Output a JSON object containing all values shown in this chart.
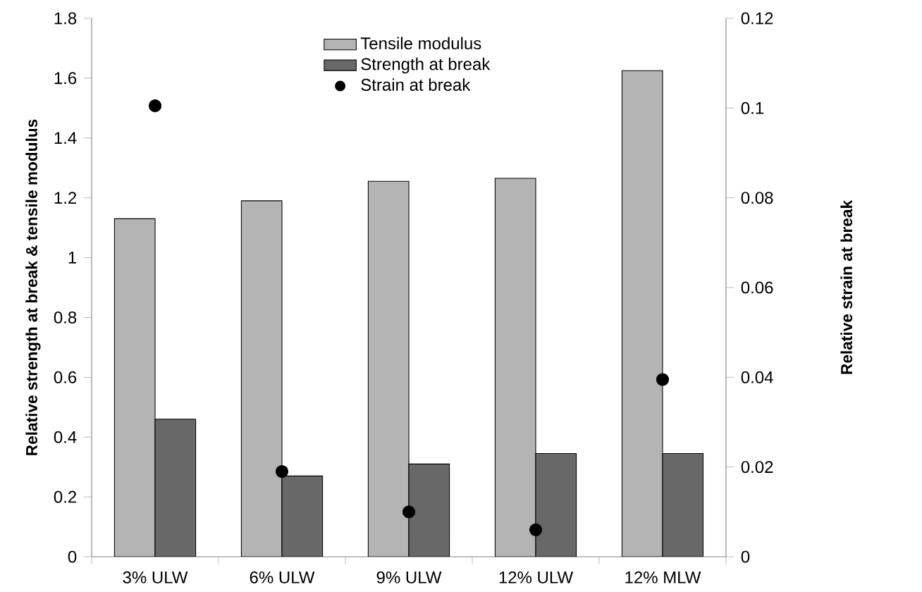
{
  "chart_data": {
    "type": "bar",
    "xlabel": null,
    "ylabel": "Relative strength at break & tensile modulus",
    "y2label": "Relative strain at break",
    "categories": [
      "3% ULW",
      "6% ULW",
      "9% ULW",
      "12% ULW",
      "12% MLW"
    ],
    "series": [
      {
        "name": "Tensile modulus",
        "color": "#b4b4b4",
        "values": [
          1.13,
          1.19,
          1.255,
          1.265,
          1.625
        ]
      },
      {
        "name": "Strength at break",
        "color": "#686868",
        "values": [
          0.46,
          0.27,
          0.31,
          0.345,
          0.345
        ]
      },
      {
        "name": "Strain at break",
        "type": "scatter",
        "axis": "y2",
        "color": "#000000",
        "values": [
          0.1005,
          0.019,
          0.01,
          0.006,
          0.0395
        ]
      }
    ],
    "ylim": [
      0,
      1.8
    ],
    "yticks": [
      0,
      0.2,
      0.4,
      0.6,
      0.8,
      1,
      1.2,
      1.4,
      1.6,
      1.8
    ],
    "y2lim": [
      0,
      0.12
    ],
    "y2ticks": [
      0,
      0.02,
      0.04,
      0.06,
      0.08,
      0.1,
      0.12
    ],
    "legend": "top"
  }
}
